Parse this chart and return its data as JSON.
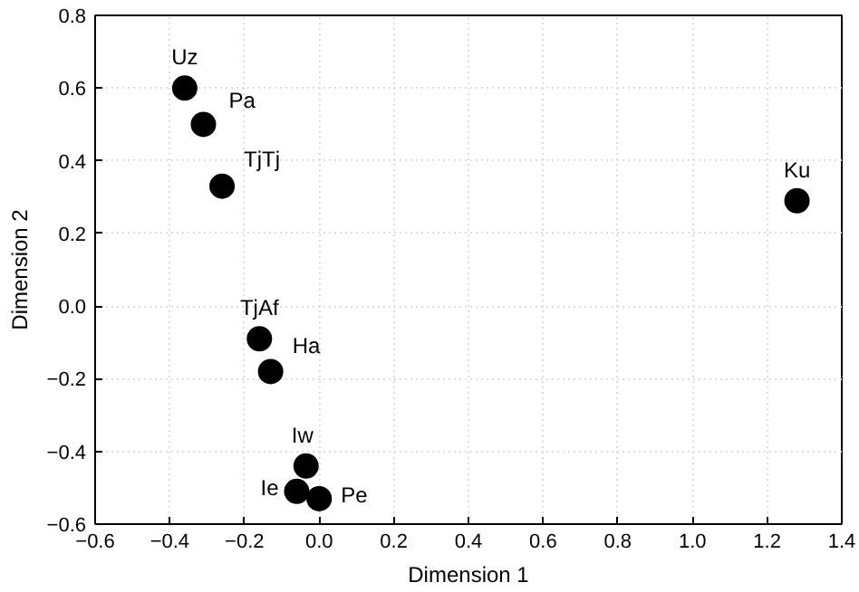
{
  "chart_data": {
    "type": "scatter",
    "xlabel": "Dimension 1",
    "ylabel": "Dimension 2",
    "x": [
      -0.36,
      -0.31,
      -0.26,
      -0.16,
      -0.13,
      -0.035,
      -0.06,
      0.0,
      1.28
    ],
    "series": [
      {
        "color": "#000000",
        "values": [
          0.6,
          0.5,
          0.33,
          -0.09,
          -0.18,
          -0.44,
          -0.51,
          -0.53,
          0.29
        ]
      }
    ],
    "annotations": [
      {
        "text": "Uz",
        "x": -0.36,
        "y": 0.6
      },
      {
        "text": "Pa",
        "x": -0.31,
        "y": 0.5
      },
      {
        "text": "TjTj",
        "x": -0.26,
        "y": 0.33
      },
      {
        "text": "TjAf",
        "x": -0.16,
        "y": -0.09
      },
      {
        "text": "Ha",
        "x": -0.13,
        "y": -0.18
      },
      {
        "text": "Iw",
        "x": -0.035,
        "y": -0.44
      },
      {
        "text": "Ie",
        "x": -0.06,
        "y": -0.51
      },
      {
        "text": "Pe",
        "x": 0.0,
        "y": -0.53
      },
      {
        "text": "Ku",
        "x": 1.28,
        "y": 0.29
      }
    ],
    "xlim": [
      -0.6,
      1.4
    ],
    "xticks": [
      {
        "value": -0.6,
        "label": "−0.6"
      },
      {
        "value": -0.4,
        "label": "−0.4"
      },
      {
        "value": -0.2,
        "label": "−0.2"
      },
      {
        "value": 0,
        "label": "0.0"
      },
      0.2,
      0.4,
      0.6,
      0.8,
      {
        "value": 1,
        "label": "1.0"
      },
      1.2,
      1.4
    ],
    "ylim": [
      -0.6,
      0.8
    ],
    "yticks": [
      {
        "value": -0.6,
        "label": "−0.6"
      },
      {
        "value": -0.4,
        "label": "−0.4"
      },
      {
        "value": -0.2,
        "label": "−0.2"
      },
      {
        "value": 0,
        "label": "0.0"
      },
      0.2,
      0.4,
      0.6,
      0.8
    ],
    "grid": true,
    "marker": "circle"
  }
}
